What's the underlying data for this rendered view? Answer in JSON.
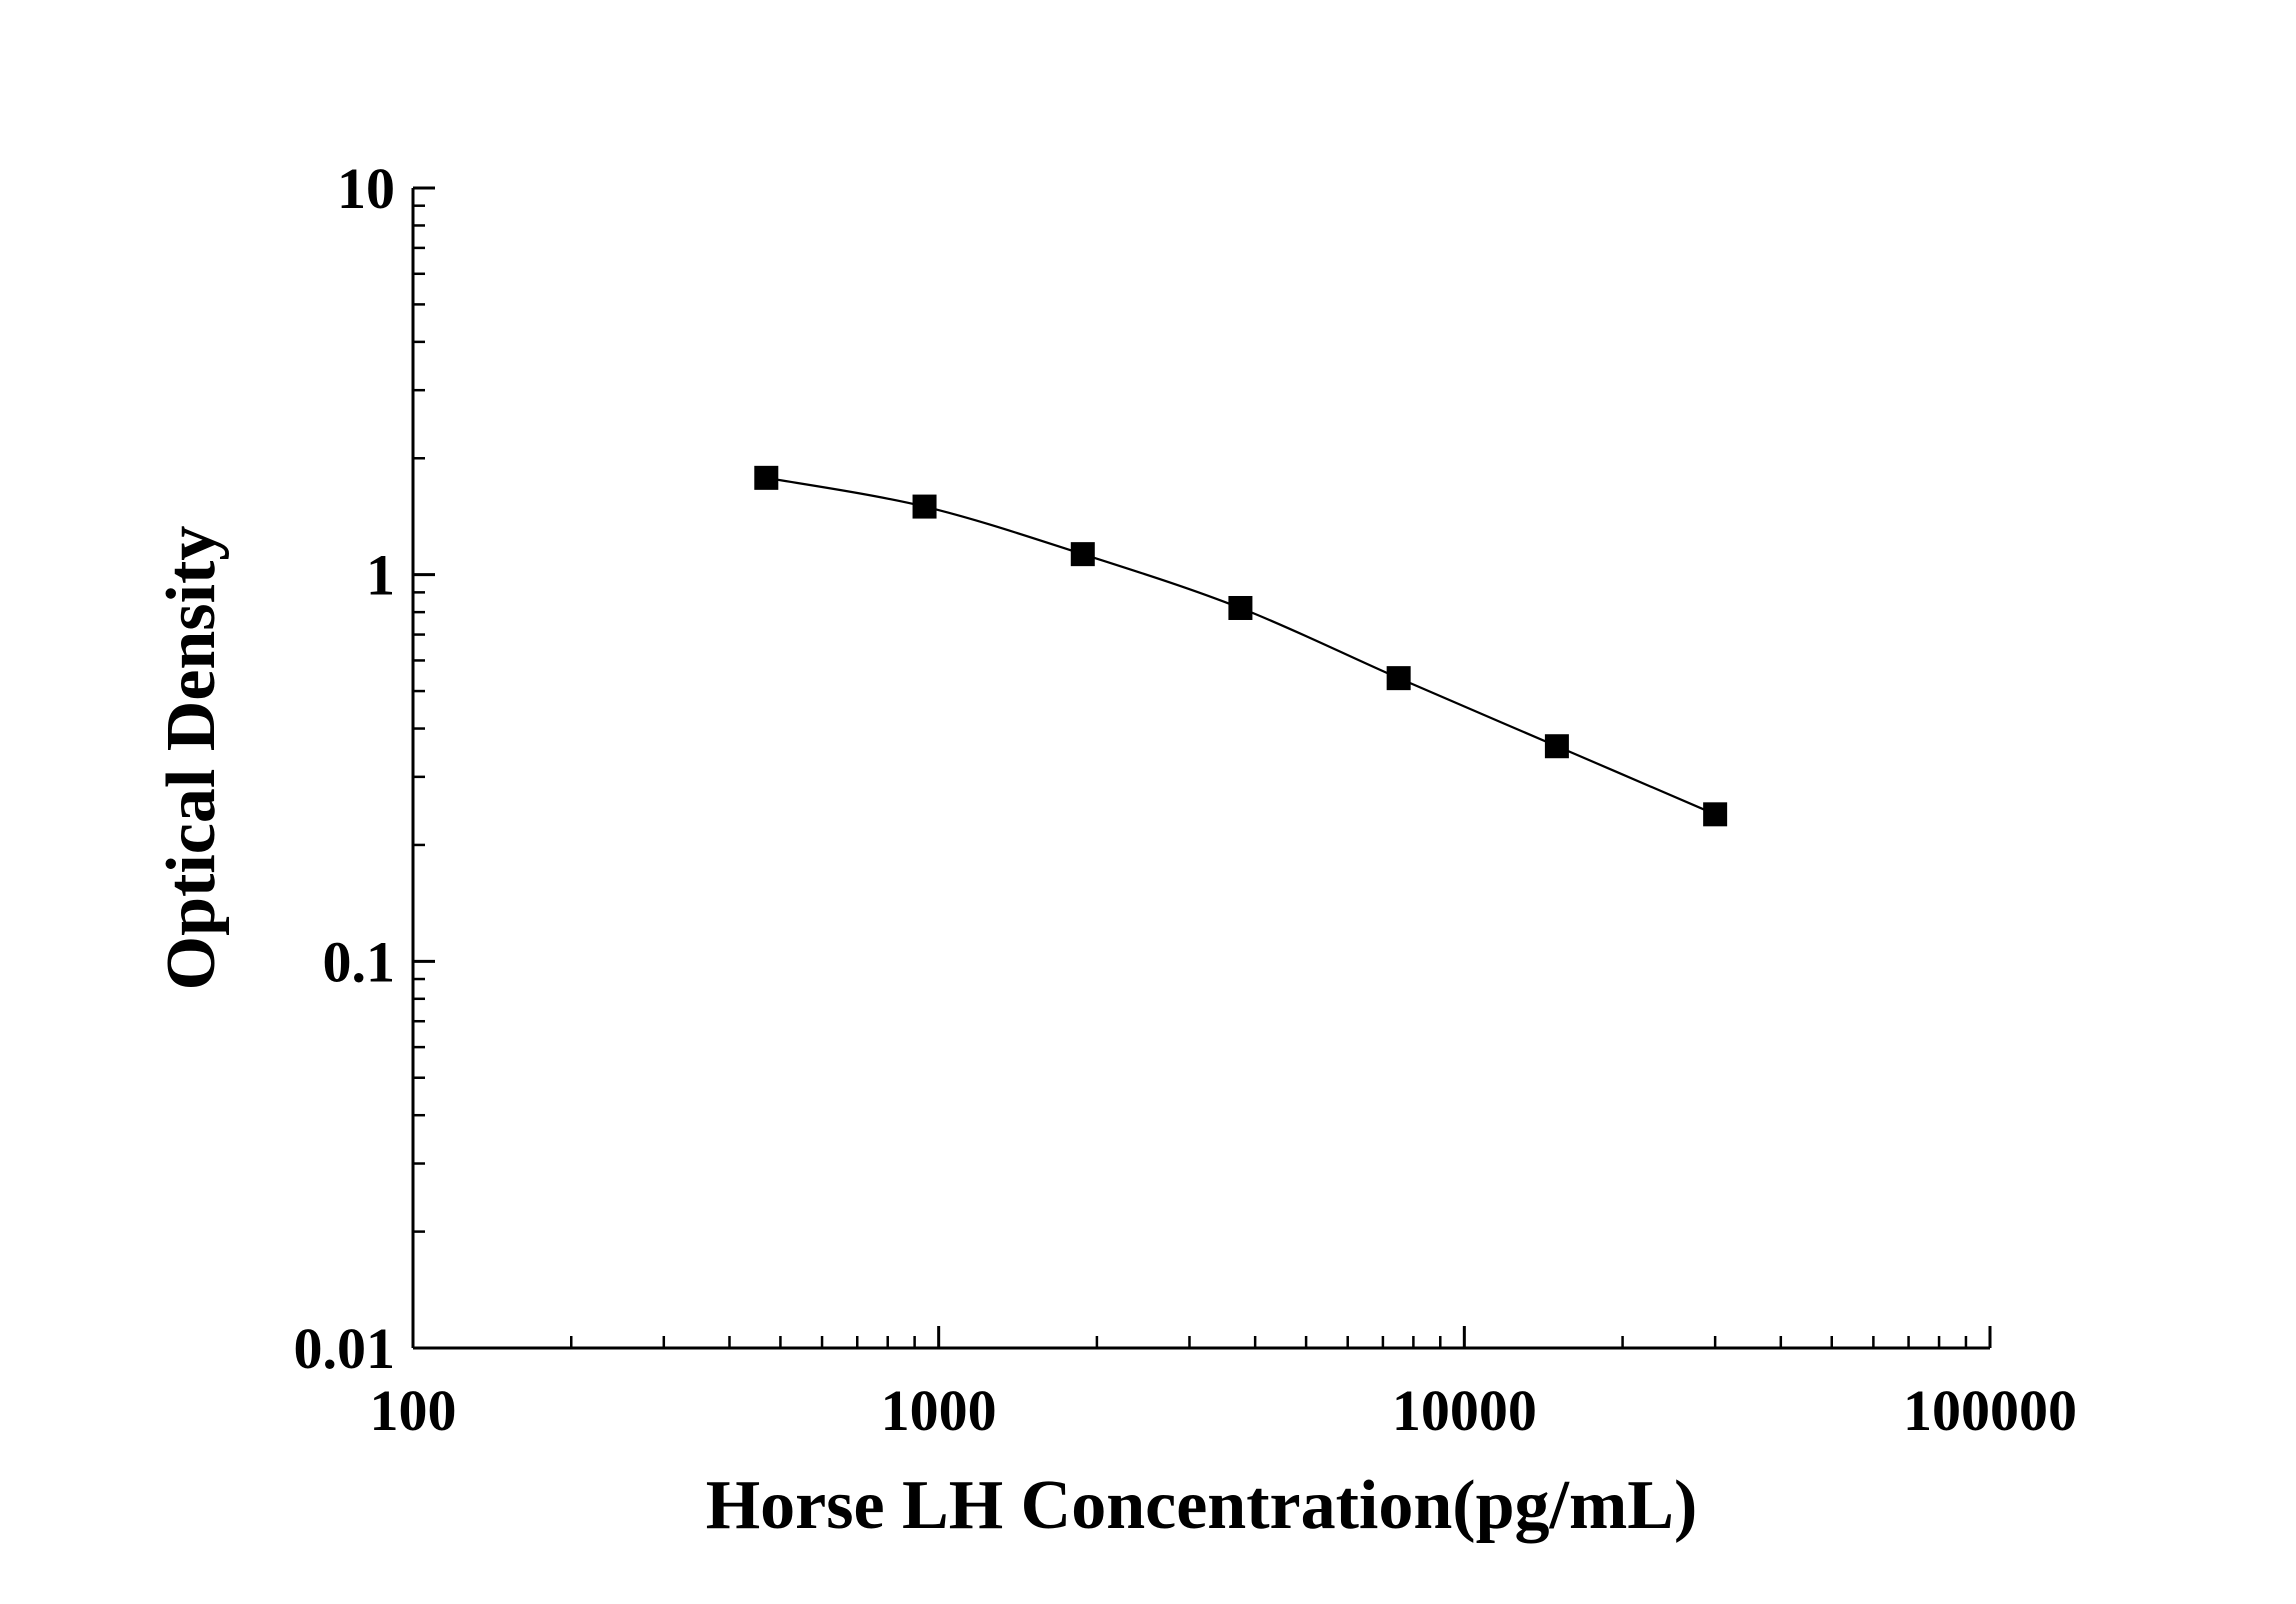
{
  "chart_data": {
    "type": "scatter",
    "title": "",
    "xlabel": "Horse LH Concentration(pg/mL)",
    "ylabel": "Optical Density",
    "x_scale": "log",
    "y_scale": "log",
    "xlim": [
      100,
      100000
    ],
    "ylim": [
      0.01,
      10
    ],
    "x_ticks": [
      100,
      1000,
      10000,
      100000
    ],
    "x_tick_labels": [
      "100",
      "1000",
      "10000",
      "100000"
    ],
    "y_ticks": [
      0.01,
      0.1,
      1,
      10
    ],
    "y_tick_labels": [
      "0.01",
      "0.1",
      "1",
      "10"
    ],
    "grid": false,
    "legend": "none",
    "series": [
      {
        "marker": "square",
        "line": "smooth fit",
        "color": "#000000",
        "x": [
          470,
          940,
          1880,
          3750,
          7500,
          15000,
          30000
        ],
        "y": [
          1.78,
          1.5,
          1.13,
          0.82,
          0.54,
          0.36,
          0.24
        ]
      }
    ]
  }
}
